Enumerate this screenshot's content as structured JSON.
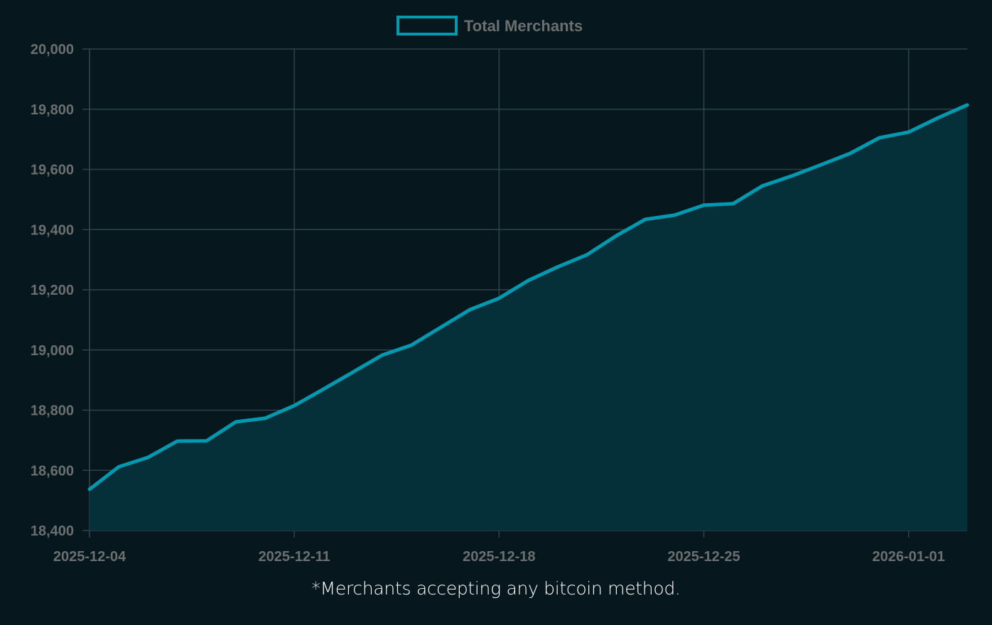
{
  "legend": {
    "label": "Total Merchants"
  },
  "caption": "*Merchants accepting any bitcoin method.",
  "colors": {
    "background": "#06171d",
    "line": "#0099b0",
    "fill": "#05303a",
    "grid": "#2f4448",
    "tick_text": "#6b6f70"
  },
  "chart_data": {
    "type": "area",
    "title": "",
    "xlabel": "",
    "ylabel": "",
    "legend": [
      "Total Merchants"
    ],
    "legend_position": "top",
    "grid": true,
    "ylim": [
      18400,
      20000
    ],
    "y_ticks": [
      "20,000",
      "19,800",
      "19,600",
      "19,400",
      "19,200",
      "19,000",
      "18,800",
      "18,600",
      "18,400"
    ],
    "x_ticks": [
      "2025-12-04",
      "2025-12-11",
      "2025-12-18",
      "2025-12-25",
      "2026-01-01"
    ],
    "x": [
      "2025-12-04",
      "2025-12-05",
      "2025-12-06",
      "2025-12-07",
      "2025-12-08",
      "2025-12-09",
      "2025-12-10",
      "2025-12-11",
      "2025-12-12",
      "2025-12-13",
      "2025-12-14",
      "2025-12-15",
      "2025-12-16",
      "2025-12-17",
      "2025-12-18",
      "2025-12-19",
      "2025-12-20",
      "2025-12-21",
      "2025-12-22",
      "2025-12-23",
      "2025-12-24",
      "2025-12-25",
      "2025-12-26",
      "2025-12-27",
      "2025-12-28",
      "2025-12-29",
      "2025-12-30",
      "2025-12-31",
      "2026-01-01",
      "2026-01-02",
      "2026-01-03"
    ],
    "series": [
      {
        "name": "Total Merchants",
        "values": [
          18537,
          18612,
          18643,
          18697,
          18698,
          18761,
          18773,
          18815,
          18870,
          18926,
          18983,
          19016,
          19075,
          19134,
          19172,
          19231,
          19276,
          19316,
          19379,
          19434,
          19448,
          19481,
          19486,
          19545,
          19578,
          19615,
          19653,
          19705,
          19724,
          19771,
          19814
        ]
      }
    ]
  }
}
